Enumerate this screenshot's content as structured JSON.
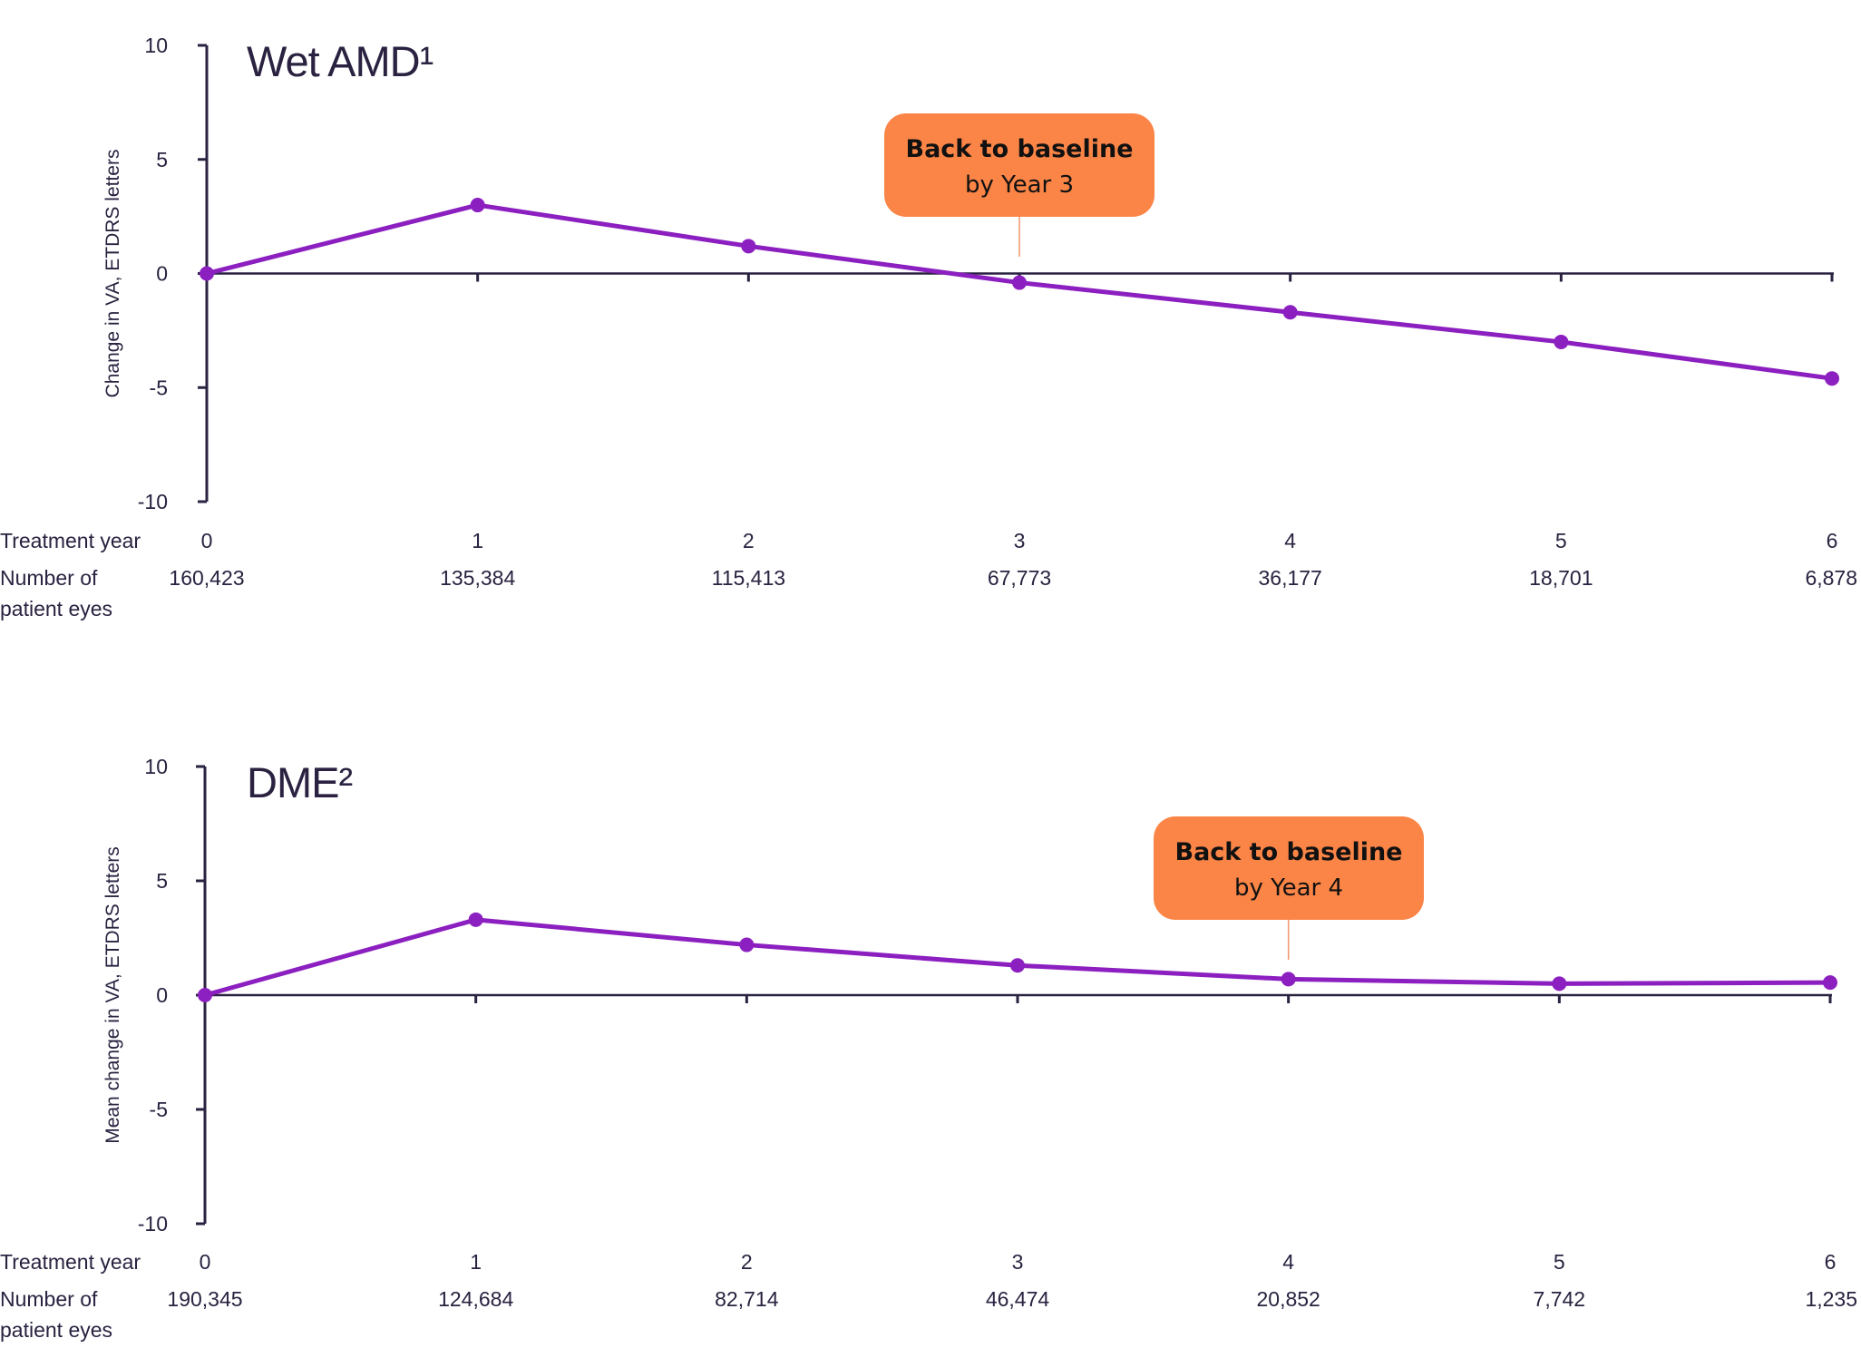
{
  "colors": {
    "line": "#8c1fc0",
    "axis": "#2a2240",
    "callout": "#fb8547",
    "callout_stem": "#f0956a"
  },
  "row_labels": {
    "treatment_year": "Treatment year",
    "eyes_line1": "Number of",
    "eyes_line2": "patient eyes"
  },
  "chart_data": [
    {
      "type": "line",
      "title": "Wet AMD¹",
      "ylabel": "Change in VA, ETDRS letters",
      "ylim": [
        -10,
        10
      ],
      "yticks": [
        "10",
        "5",
        "0",
        "-5",
        "-10"
      ],
      "x": [
        0,
        1,
        2,
        3,
        4,
        5,
        6
      ],
      "x_labels": [
        "0",
        "1",
        "2",
        "3",
        "4",
        "5",
        "6"
      ],
      "values": [
        0,
        3.0,
        1.2,
        -0.4,
        -1.7,
        -3.0,
        -4.6
      ],
      "patient_eyes": [
        "160,423",
        "135,384",
        "115,413",
        "67,773",
        "36,177",
        "18,701",
        "6,878"
      ],
      "callout": {
        "bold": "Back to baseline",
        "text": "by Year 3",
        "year": 3
      }
    },
    {
      "type": "line",
      "title": "DME²",
      "ylabel": "Mean change in VA, ETDRS letters",
      "ylim": [
        -10,
        10
      ],
      "yticks": [
        "10",
        "5",
        "0",
        "-5",
        "-10"
      ],
      "x": [
        0,
        1,
        2,
        3,
        4,
        5,
        6
      ],
      "x_labels": [
        "0",
        "1",
        "2",
        "3",
        "4",
        "5",
        "6"
      ],
      "values": [
        0,
        3.3,
        2.2,
        1.3,
        0.7,
        0.5,
        0.55
      ],
      "patient_eyes": [
        "190,345",
        "124,684",
        "82,714",
        "46,474",
        "20,852",
        "7,742",
        "1,235"
      ],
      "callout": {
        "bold": "Back to baseline",
        "text": "by Year 4",
        "year": 4
      }
    }
  ]
}
